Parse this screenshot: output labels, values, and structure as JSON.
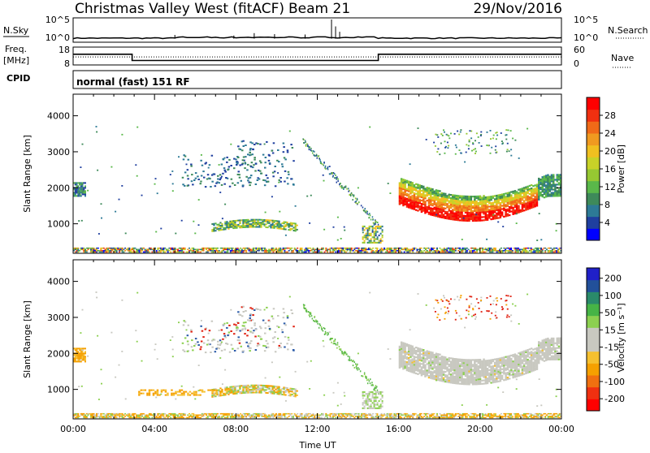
{
  "header": {
    "station": "Christmas Valley West (fitACF)",
    "beam": "Beam 21",
    "date": "29/Nov/2016"
  },
  "strip": {
    "nsky_label": "N.Sky",
    "nsky_ticks": [
      "10^5",
      "10^0"
    ],
    "nsearch_label": "N.Search",
    "freq_label_1": "Freq.",
    "freq_label_2": "[MHz]",
    "freq_ticks": [
      "18",
      "8"
    ],
    "nave_ticks": [
      "60",
      "0"
    ],
    "nave_label": "Nave",
    "cpid_label": "CPID",
    "cpid_text": "normal (fast) 151 RF"
  },
  "colors": {
    "power": [
      "#0000ff",
      "#1f3f9f",
      "#2d7a96",
      "#3e8a5a",
      "#5ab84a",
      "#96c832",
      "#c8d228",
      "#f0c020",
      "#f09a20",
      "#f06a18",
      "#f03010",
      "#ff0000"
    ],
    "velocity": [
      "#ff0000",
      "#f03010",
      "#f07010",
      "#f5a000",
      "#f5c030",
      "#c8c8c0",
      "#c8c8c0",
      "#8cd050",
      "#46b446",
      "#2a8a6a",
      "#22509a",
      "#2020c8"
    ]
  },
  "chart_data": [
    {
      "type": "line",
      "title": "N.Sky / N.Search",
      "x_range_hours": [
        0,
        24
      ],
      "y_scale": "log",
      "ylim": [
        1,
        100000
      ],
      "series": [
        {
          "values_hours": [
            0,
            2,
            4,
            6,
            8,
            10,
            12,
            13,
            14,
            16,
            18,
            20,
            22,
            24
          ],
          "values": [
            5,
            5,
            6,
            7,
            8,
            9,
            10,
            100000,
            8,
            6,
            5,
            5,
            5,
            5
          ]
        }
      ]
    },
    {
      "type": "line",
      "title": "Freq. / Nave",
      "x_range_hours": [
        0,
        24
      ],
      "ylim": [
        8,
        18
      ],
      "y2lim": [
        0,
        60
      ],
      "series": [
        {
          "x": [
            0,
            2.9,
            2.9,
            15,
            15,
            24
          ],
          "values": [
            14,
            14,
            10.5,
            10.5,
            14,
            14
          ]
        },
        {
          "x": [
            0,
            24
          ],
          "values": [
            27,
            27
          ]
        }
      ]
    },
    {
      "type": "heatmap",
      "title": "Power",
      "xlabel": "",
      "ylabel": "Slant Range [km]",
      "x_ticks": [
        "00:00",
        "04:00",
        "08:00",
        "12:00",
        "16:00",
        "20:00",
        "00:00"
      ],
      "y_ticks": [
        "1000",
        "2000",
        "3000",
        "4000"
      ],
      "xlim_hours": [
        0,
        24
      ],
      "ylim": [
        180,
        4600
      ],
      "colorbar_label": "Power [dB]",
      "colorbar_ticks": [
        "4",
        "8",
        "12",
        "16",
        "20",
        "24",
        "28"
      ],
      "regions": [
        {
          "t": [
            16.0,
            24.0
          ],
          "r": [
            1300,
            2400
          ],
          "v": "strong-band"
        },
        {
          "t": [
            7.0,
            11.0
          ],
          "r": [
            780,
            1080
          ],
          "v": "medium"
        },
        {
          "t": [
            0.0,
            24.0
          ],
          "r": [
            200,
            330
          ],
          "v": "mixed"
        },
        {
          "t": [
            11.0,
            15.0
          ],
          "r": [
            900,
            3300
          ],
          "v": "diagonal"
        },
        {
          "t": [
            0.0,
            0.6
          ],
          "r": [
            1750,
            2100
          ],
          "v": "blue"
        },
        {
          "t": [
            5.5,
            10.5
          ],
          "r": [
            2000,
            3200
          ],
          "v": "sparse-blue"
        }
      ]
    },
    {
      "type": "heatmap",
      "title": "Velocity",
      "xlabel": "Time UT",
      "ylabel": "Slant Range [km]",
      "x_ticks": [
        "00:00",
        "04:00",
        "08:00",
        "12:00",
        "16:00",
        "20:00",
        "00:00"
      ],
      "y_ticks": [
        "1000",
        "2000",
        "3000",
        "4000"
      ],
      "xlim_hours": [
        0,
        24
      ],
      "ylim": [
        180,
        4600
      ],
      "colorbar_label": "Velocity [m s⁻¹]",
      "colorbar_ticks": [
        "200",
        "100",
        "50",
        "15",
        "-15",
        "-50",
        "-100",
        "-200"
      ],
      "regions": [
        {
          "t": [
            16.0,
            24.0
          ],
          "r": [
            1300,
            2500
          ],
          "v": "grey-band"
        },
        {
          "t": [
            3.0,
            11.0
          ],
          "r": [
            780,
            1080
          ],
          "v": "orange-grey"
        },
        {
          "t": [
            0.0,
            24.0
          ],
          "r": [
            200,
            340
          ],
          "v": "orange-green"
        },
        {
          "t": [
            11.0,
            15.0
          ],
          "r": [
            900,
            3300
          ],
          "v": "green-diagonal"
        },
        {
          "t": [
            0.0,
            0.6
          ],
          "r": [
            1800,
            2200
          ],
          "v": "orange"
        },
        {
          "t": [
            17.5,
            21.0
          ],
          "r": [
            3400,
            3600
          ],
          "v": "red"
        }
      ]
    }
  ]
}
